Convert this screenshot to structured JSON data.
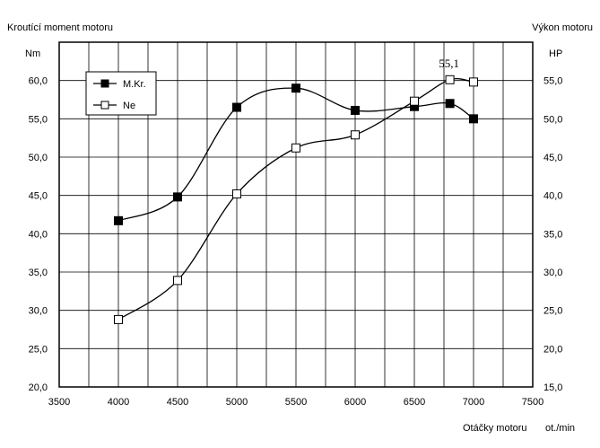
{
  "chart_data": {
    "type": "line",
    "left_title": "Kroutící moment motoru",
    "right_title": "Výkon motoru",
    "ylabel": "Nm",
    "y2label": "HP",
    "xlabel": "Otáčky motoru",
    "xunit": "ot./min",
    "xlim": [
      3500,
      7500
    ],
    "ylim": [
      20,
      65
    ],
    "y2lim": [
      15,
      60
    ],
    "x_ticks": [
      "3500",
      "4000",
      "4500",
      "5000",
      "5500",
      "6000",
      "6500",
      "7000",
      "7500"
    ],
    "y_ticks": [
      "20,0",
      "25,0",
      "30,0",
      "35,0",
      "40,0",
      "45,0",
      "50,0",
      "55,0",
      "60,0"
    ],
    "y2_ticks": [
      "15,0",
      "20,0",
      "25,0",
      "30,0",
      "35,0",
      "40,0",
      "45,0",
      "50,0",
      "55,0"
    ],
    "grid": true,
    "legend_position": "top-left",
    "series": [
      {
        "name": "M.Kr.",
        "axis": "left",
        "marker": "filled-square",
        "x": [
          4000,
          4500,
          5000,
          5500,
          6000,
          6500,
          6800,
          7000
        ],
        "values": [
          41.7,
          44.8,
          56.5,
          59.0,
          56.1,
          56.6,
          57.0,
          55.0
        ]
      },
      {
        "name": "Ne",
        "axis": "right",
        "marker": "open-square",
        "x": [
          4000,
          4500,
          5000,
          5500,
          6000,
          6500,
          6800,
          7000
        ],
        "values": [
          23.8,
          28.9,
          40.2,
          46.2,
          47.9,
          52.3,
          55.1,
          54.8
        ]
      }
    ],
    "annotations": [
      {
        "text": "55,1",
        "x": 6800,
        "series": "Ne"
      }
    ]
  }
}
